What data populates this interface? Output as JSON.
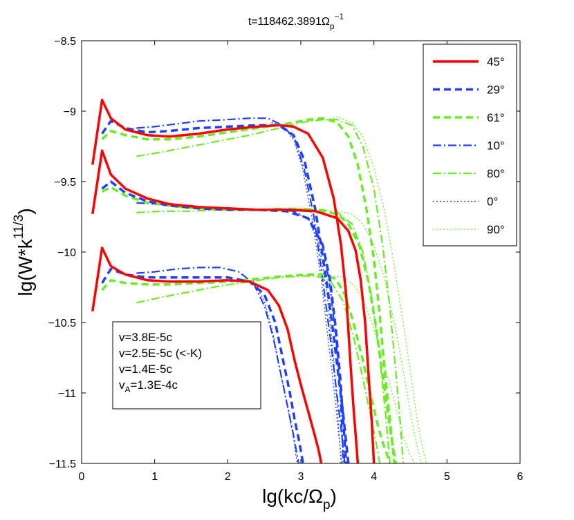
{
  "chart_data": {
    "type": "line",
    "title": {
      "main": "t=118462.3891Ω",
      "sub": "p",
      "sup": "−1"
    },
    "xlabel": {
      "main": "lg(kc/Ω",
      "sub": "p",
      "tail": ")"
    },
    "ylabel": {
      "main": "lg(W*k",
      "sup": "11/3",
      "tail": ")"
    },
    "xlim": [
      0,
      6
    ],
    "ylim": [
      -11.5,
      -8.5
    ],
    "xticks": [
      0,
      1,
      2,
      3,
      4,
      5,
      6
    ],
    "xtick_labels": [
      "0",
      "1",
      "2",
      "3",
      "4",
      "5",
      "6"
    ],
    "yticks": [
      -11.5,
      -11,
      -10.5,
      -10,
      -9.5,
      -9,
      -8.5
    ],
    "ytick_labels": [
      "−11.5",
      "−11",
      "−10.5",
      "−10",
      "−9.5",
      "−9",
      "−8.5"
    ],
    "legend_position": "top-right",
    "annotation": {
      "lines": [
        {
          "text": "v=3.8E-5c"
        },
        {
          "text": "v=2.5E-5c (<-K)"
        },
        {
          "text": "v=1.4E-5c"
        },
        {
          "main": "v",
          "sub": "A",
          "tail": "=1.3E-4c"
        }
      ]
    },
    "series": [
      {
        "name": "45°",
        "angle": "45",
        "color": "#ff0000",
        "dash": "solid",
        "width": 3.5,
        "groups": [
          {
            "velocity": "3.8E-5c",
            "x": [
              0.15,
              0.28,
              0.4,
              0.6,
              0.9,
              1.2,
              1.6,
              2.0,
              2.4,
              2.7,
              2.9,
              3.1,
              3.3,
              3.45,
              3.55,
              3.62,
              3.68,
              3.72,
              3.75,
              3.78
            ],
            "y": [
              -9.38,
              -8.92,
              -9.05,
              -9.13,
              -9.17,
              -9.18,
              -9.16,
              -9.13,
              -9.11,
              -9.1,
              -9.11,
              -9.16,
              -9.33,
              -9.62,
              -9.95,
              -10.3,
              -10.8,
              -11.1,
              -11.3,
              -11.5
            ]
          },
          {
            "velocity": "2.5E-5c",
            "x": [
              0.15,
              0.28,
              0.4,
              0.6,
              0.9,
              1.2,
              1.6,
              2.0,
              2.4,
              2.8,
              3.2,
              3.5,
              3.65,
              3.75,
              3.82,
              3.88,
              3.93,
              3.97,
              4.0
            ],
            "y": [
              -9.73,
              -9.28,
              -9.45,
              -9.55,
              -9.62,
              -9.66,
              -9.68,
              -9.69,
              -9.7,
              -9.7,
              -9.71,
              -9.76,
              -9.85,
              -9.99,
              -10.2,
              -10.5,
              -10.9,
              -11.2,
              -11.5
            ]
          },
          {
            "velocity": "1.4E-5c",
            "x": [
              0.15,
              0.28,
              0.4,
              0.6,
              0.9,
              1.2,
              1.6,
              2.0,
              2.3,
              2.55,
              2.7,
              2.82,
              2.92,
              3.02,
              3.1,
              3.18,
              3.24,
              3.28
            ],
            "y": [
              -10.42,
              -9.97,
              -10.1,
              -10.16,
              -10.2,
              -10.21,
              -10.21,
              -10.2,
              -10.21,
              -10.27,
              -10.38,
              -10.55,
              -10.78,
              -10.98,
              -11.13,
              -11.28,
              -11.4,
              -11.5
            ]
          }
        ]
      },
      {
        "name": "29°",
        "angle": "29",
        "color": "#1f3fff",
        "dash": "10,6",
        "width": 3.5,
        "groups": [
          {
            "velocity": "3.8E-5c",
            "x": [
              0.28,
              0.4,
              0.6,
              0.9,
              1.2,
              1.6,
              2.0,
              2.4,
              2.7,
              2.9,
              3.05,
              3.2,
              3.35,
              3.45,
              3.52,
              3.58,
              3.62,
              3.65
            ],
            "y": [
              -9.16,
              -9.07,
              -9.12,
              -9.15,
              -9.14,
              -9.12,
              -9.11,
              -9.1,
              -9.1,
              -9.17,
              -9.35,
              -9.7,
              -10.2,
              -10.6,
              -10.9,
              -11.15,
              -11.35,
              -11.5
            ]
          },
          {
            "velocity": "2.5E-5c",
            "x": [
              0.28,
              0.4,
              0.6,
              0.9,
              1.2,
              1.6,
              2.0,
              2.4,
              2.8,
              3.1,
              3.3,
              3.4,
              3.48,
              3.54,
              3.58,
              3.62
            ],
            "y": [
              -9.55,
              -9.5,
              -9.58,
              -9.64,
              -9.67,
              -9.69,
              -9.7,
              -9.7,
              -9.71,
              -9.76,
              -9.95,
              -10.2,
              -10.55,
              -10.9,
              -11.2,
              -11.5
            ]
          },
          {
            "velocity": "1.4E-5c",
            "x": [
              0.28,
              0.4,
              0.6,
              0.9,
              1.2,
              1.6,
              2.0,
              2.3,
              2.5,
              2.65,
              2.75,
              2.85,
              2.92,
              2.98,
              3.03
            ],
            "y": [
              -10.22,
              -10.12,
              -10.16,
              -10.18,
              -10.18,
              -10.18,
              -10.18,
              -10.21,
              -10.3,
              -10.5,
              -10.75,
              -11.0,
              -11.2,
              -11.35,
              -11.5
            ]
          }
        ]
      },
      {
        "name": "61°",
        "angle": "61",
        "color": "#66ee22",
        "dash": "10,6",
        "width": 3.5,
        "groups": [
          {
            "velocity": "3.8E-5c",
            "x": [
              0.28,
              0.4,
              0.6,
              0.9,
              1.2,
              1.6,
              2.0,
              2.4,
              2.8,
              3.1,
              3.3,
              3.5,
              3.65,
              3.78,
              3.9,
              4.0,
              4.08,
              4.15,
              4.22,
              4.28
            ],
            "y": [
              -9.2,
              -9.14,
              -9.17,
              -9.2,
              -9.2,
              -9.18,
              -9.15,
              -9.12,
              -9.09,
              -9.06,
              -9.05,
              -9.08,
              -9.18,
              -9.38,
              -9.7,
              -10.05,
              -10.45,
              -10.85,
              -11.2,
              -11.5
            ]
          },
          {
            "velocity": "2.5E-5c",
            "x": [
              0.28,
              0.4,
              0.6,
              0.9,
              1.2,
              1.6,
              2.0,
              2.4,
              2.8,
              3.1,
              3.3,
              3.5,
              3.65,
              3.8,
              3.92,
              4.02,
              4.1,
              4.18,
              4.25,
              4.3
            ],
            "y": [
              -9.57,
              -9.54,
              -9.6,
              -9.65,
              -9.67,
              -9.69,
              -9.7,
              -9.7,
              -9.7,
              -9.7,
              -9.71,
              -9.73,
              -9.8,
              -9.95,
              -10.2,
              -10.5,
              -10.8,
              -11.1,
              -11.35,
              -11.5
            ]
          },
          {
            "velocity": "1.4E-5c",
            "x": [
              0.28,
              0.4,
              0.6,
              0.9,
              1.2,
              1.6,
              2.0,
              2.4,
              2.8,
              3.1,
              3.3,
              3.48,
              3.6,
              3.72,
              3.84,
              3.95,
              4.05,
              4.12,
              4.18,
              4.22
            ],
            "y": [
              -10.27,
              -10.2,
              -10.22,
              -10.23,
              -10.23,
              -10.22,
              -10.21,
              -10.19,
              -10.17,
              -10.16,
              -10.16,
              -10.19,
              -10.3,
              -10.5,
              -10.75,
              -11.0,
              -11.22,
              -11.35,
              -11.44,
              -11.5
            ]
          }
        ]
      },
      {
        "name": "10°",
        "angle": "10",
        "color": "#1f3fff",
        "dash": "12,4,2,4",
        "width": 2.2,
        "groups": [
          {
            "velocity": "3.8E-5c",
            "x": [
              0.75,
              1.0,
              1.3,
              1.6,
              2.0,
              2.3,
              2.55,
              2.75,
              2.92,
              3.05,
              3.18,
              3.3,
              3.4,
              3.48,
              3.55,
              3.6
            ],
            "y": [
              -9.12,
              -9.11,
              -9.09,
              -9.07,
              -9.06,
              -9.05,
              -9.05,
              -9.1,
              -9.2,
              -9.42,
              -9.75,
              -10.2,
              -10.6,
              -10.95,
              -11.25,
              -11.5
            ]
          },
          {
            "velocity": "2.5E-5c",
            "x": [
              0.75,
              1.0,
              1.4,
              1.8,
              2.2,
              2.6,
              2.9,
              3.15,
              3.3,
              3.4,
              3.48,
              3.54,
              3.58
            ],
            "y": [
              -9.65,
              -9.66,
              -9.68,
              -9.69,
              -9.7,
              -9.7,
              -9.71,
              -9.78,
              -9.95,
              -10.25,
              -10.6,
              -11.0,
              -11.5
            ]
          },
          {
            "velocity": "1.4E-5c",
            "x": [
              0.75,
              1.0,
              1.3,
              1.6,
              1.9,
              2.15,
              2.35,
              2.5,
              2.62,
              2.72,
              2.82,
              2.9,
              2.97
            ],
            "y": [
              -10.15,
              -10.14,
              -10.12,
              -10.11,
              -10.11,
              -10.14,
              -10.22,
              -10.38,
              -10.6,
              -10.85,
              -11.1,
              -11.3,
              -11.5
            ]
          }
        ]
      },
      {
        "name": "80°",
        "angle": "80",
        "color": "#66ee22",
        "dash": "12,4,2,4",
        "width": 2.2,
        "groups": [
          {
            "velocity": "3.8E-5c",
            "x": [
              0.75,
              1.1,
              1.5,
              1.9,
              2.3,
              2.7,
              3.0,
              3.3,
              3.5,
              3.7,
              3.85,
              4.0,
              4.12,
              4.22,
              4.3,
              4.36,
              4.4
            ],
            "y": [
              -9.32,
              -9.29,
              -9.25,
              -9.21,
              -9.17,
              -9.12,
              -9.08,
              -9.06,
              -9.06,
              -9.1,
              -9.25,
              -9.55,
              -9.95,
              -10.4,
              -10.85,
              -11.2,
              -11.5
            ]
          },
          {
            "velocity": "2.5E-5c",
            "x": [
              0.75,
              1.1,
              1.5,
              1.9,
              2.3,
              2.7,
              3.0,
              3.3,
              3.5,
              3.7,
              3.85,
              3.98,
              4.08,
              4.16,
              4.22
            ],
            "y": [
              -9.72,
              -9.71,
              -9.71,
              -9.7,
              -9.7,
              -9.69,
              -9.69,
              -9.7,
              -9.72,
              -9.8,
              -10.0,
              -10.35,
              -10.75,
              -11.15,
              -11.5
            ]
          },
          {
            "velocity": "1.4E-5c",
            "x": [
              0.75,
              1.1,
              1.5,
              1.9,
              2.3,
              2.7,
              3.0,
              3.2,
              3.4,
              3.58,
              3.72,
              3.85,
              3.95,
              4.03,
              4.08
            ],
            "y": [
              -10.36,
              -10.32,
              -10.28,
              -10.24,
              -10.21,
              -10.18,
              -10.17,
              -10.17,
              -10.2,
              -10.35,
              -10.6,
              -10.9,
              -11.15,
              -11.35,
              -11.5
            ]
          }
        ]
      },
      {
        "name": "0°",
        "angle": "0",
        "color": "#1f3fff",
        "dash": "2,3",
        "width": 1.3,
        "groups": [
          {
            "velocity": "3.8E-5c",
            "x": [
              2.6,
              2.75,
              2.9,
              3.02,
              3.15,
              3.28,
              3.38,
              3.46,
              3.52,
              3.56
            ],
            "y": [
              -9.08,
              -9.1,
              -9.2,
              -9.4,
              -9.75,
              -10.2,
              -10.65,
              -11.0,
              -11.3,
              -11.5
            ]
          },
          {
            "velocity": "2.5E-5c",
            "x": [
              2.9,
              3.1,
              3.25,
              3.36,
              3.44,
              3.5,
              3.55
            ],
            "y": [
              -9.72,
              -9.76,
              -9.95,
              -10.3,
              -10.7,
              -11.1,
              -11.5
            ]
          },
          {
            "velocity": "1.4E-5c",
            "x": [
              2.35,
              2.5,
              2.62,
              2.72,
              2.82,
              2.9,
              2.95
            ],
            "y": [
              -10.2,
              -10.35,
              -10.58,
              -10.85,
              -11.1,
              -11.32,
              -11.5
            ]
          }
        ]
      },
      {
        "name": "90°",
        "angle": "90",
        "color": "#66ee22",
        "dash": "2,3",
        "width": 1.3,
        "groups": [
          {
            "velocity": "3.8E-5c",
            "x": [
              3.3,
              3.5,
              3.7,
              3.85,
              4.0,
              4.15,
              4.28,
              4.4,
              4.5,
              4.58,
              4.65,
              4.72
            ],
            "y": [
              -9.07,
              -9.04,
              -9.08,
              -9.18,
              -9.4,
              -9.72,
              -10.1,
              -10.5,
              -10.85,
              -11.15,
              -11.35,
              -11.5
            ]
          },
          {
            "velocity": "2.5E-5c",
            "x": [
              3.5,
              3.7,
              3.85,
              4.0,
              4.15,
              4.3,
              4.42,
              4.52,
              4.6,
              4.65
            ],
            "y": [
              -9.71,
              -9.73,
              -9.8,
              -9.95,
              -10.2,
              -10.55,
              -10.9,
              -11.2,
              -11.4,
              -11.5
            ]
          },
          {
            "velocity": "1.4E-5c",
            "x": [
              3.45,
              3.6,
              3.75,
              3.9,
              4.05,
              4.18,
              4.3,
              4.4,
              4.48,
              4.55
            ],
            "y": [
              -10.17,
              -10.18,
              -10.25,
              -10.4,
              -10.62,
              -10.87,
              -11.1,
              -11.3,
              -11.42,
              -11.5
            ]
          }
        ]
      }
    ]
  }
}
